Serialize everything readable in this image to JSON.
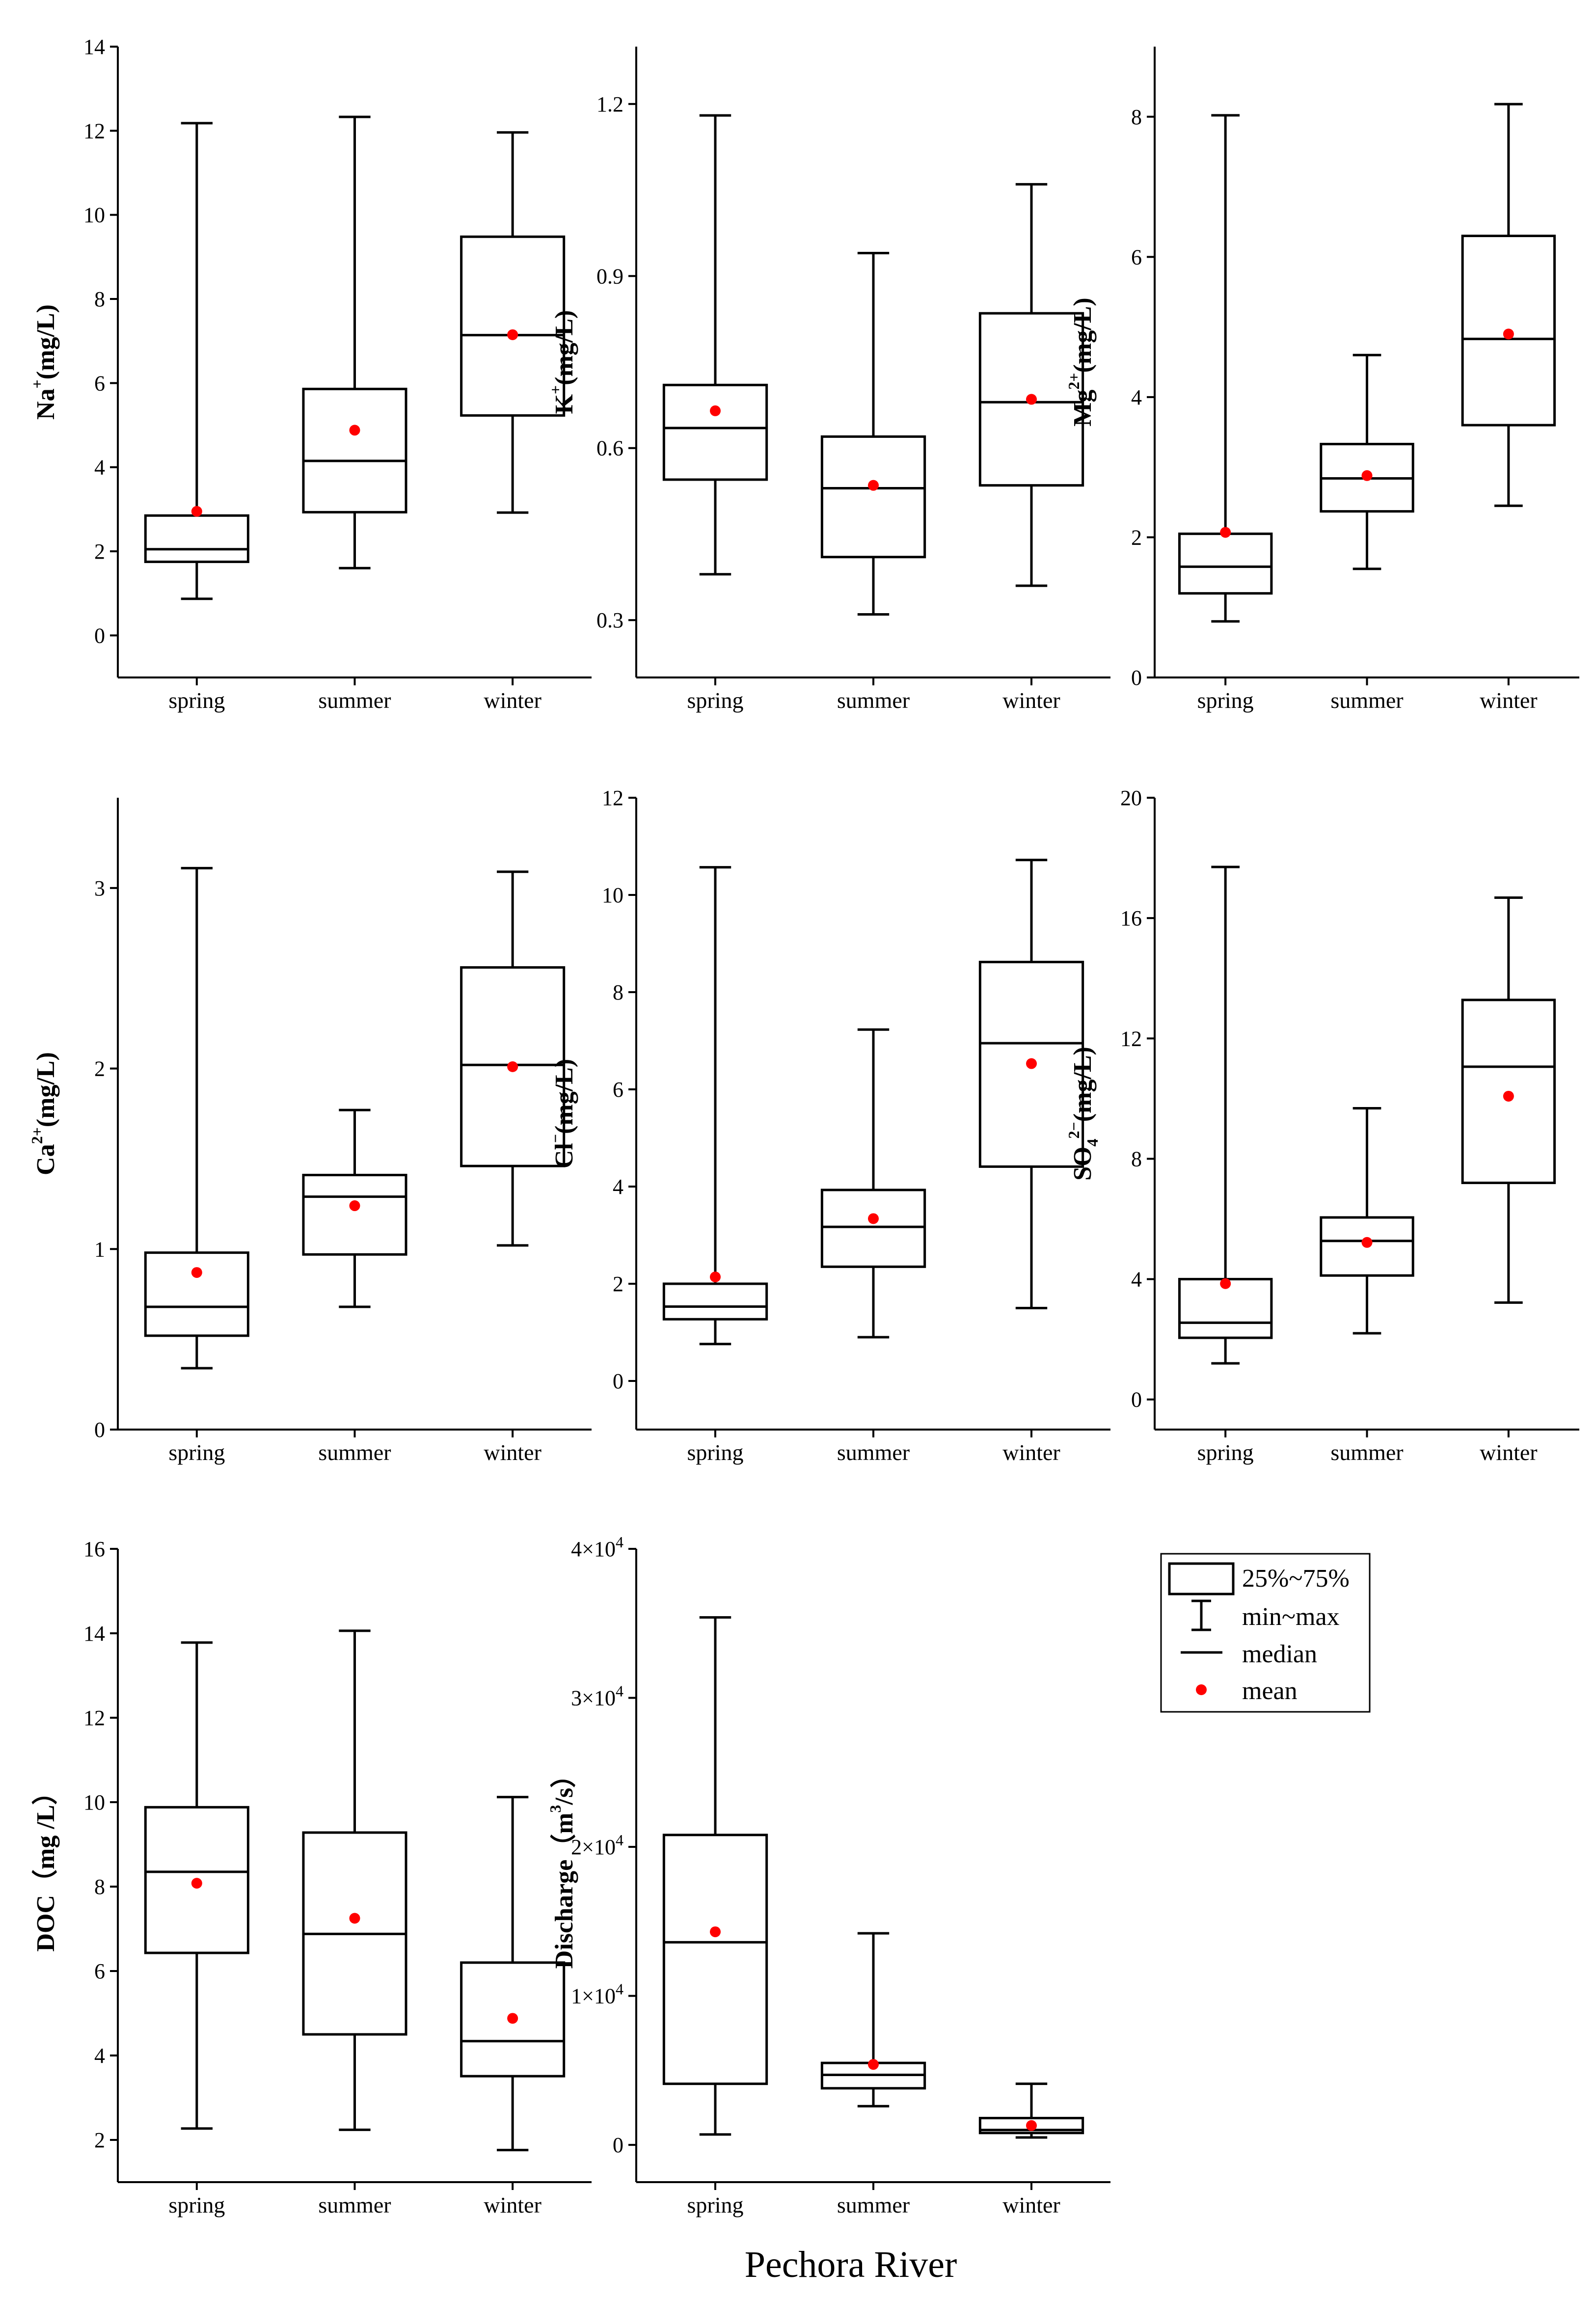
{
  "figure": {
    "footer_label": "Pechora River"
  },
  "legend": {
    "box_label": "25%~75%",
    "whisker_label": "min~max",
    "median_label": "median",
    "mean_label": "mean"
  },
  "colors": {
    "mean_marker": "#ff0000",
    "lines": "#000000",
    "background": "#ffffff"
  },
  "chart_data": [
    {
      "type": "box",
      "ylabel": {
        "base": "Na",
        "sup": "+",
        "suffix": "(mg/L)"
      },
      "ylim": [
        -1,
        14
      ],
      "yticks": [
        0,
        2,
        4,
        6,
        8,
        10,
        12,
        14
      ],
      "categories": [
        "spring",
        "summer",
        "winter"
      ],
      "boxes": [
        {
          "min": 0.87,
          "q1": 1.75,
          "median": 2.05,
          "q3": 2.85,
          "max": 12.18,
          "mean": 2.95
        },
        {
          "min": 1.6,
          "q1": 2.93,
          "median": 4.15,
          "q3": 5.86,
          "max": 12.33,
          "mean": 4.88
        },
        {
          "min": 2.92,
          "q1": 5.23,
          "median": 7.14,
          "q3": 9.48,
          "max": 11.96,
          "mean": 7.15
        }
      ]
    },
    {
      "type": "box",
      "ylabel": {
        "base": "K",
        "sup": "+",
        "suffix": "(mg/L)"
      },
      "ylim": [
        0.2,
        1.3
      ],
      "yticks": [
        0.3,
        0.6,
        0.9,
        1.2
      ],
      "tick_labels": [
        "0.3",
        "0.6",
        "0.9",
        "1.2"
      ],
      "categories": [
        "spring",
        "summer",
        "winter"
      ],
      "boxes": [
        {
          "min": 0.38,
          "q1": 0.545,
          "median": 0.635,
          "q3": 0.71,
          "max": 1.18,
          "mean": 0.665
        },
        {
          "min": 0.31,
          "q1": 0.41,
          "median": 0.53,
          "q3": 0.62,
          "max": 0.94,
          "mean": 0.535
        },
        {
          "min": 0.36,
          "q1": 0.535,
          "median": 0.68,
          "q3": 0.835,
          "max": 1.06,
          "mean": 0.685
        }
      ]
    },
    {
      "type": "box",
      "ylabel": {
        "base": "Mg",
        "sup": "2+",
        "suffix": "(mg/L)"
      },
      "ylim": [
        0,
        9
      ],
      "yticks": [
        0,
        2,
        4,
        6,
        8
      ],
      "categories": [
        "spring",
        "summer",
        "winter"
      ],
      "boxes": [
        {
          "min": 0.8,
          "q1": 1.2,
          "median": 1.58,
          "q3": 2.05,
          "max": 8.02,
          "mean": 2.07
        },
        {
          "min": 1.55,
          "q1": 2.37,
          "median": 2.84,
          "q3": 3.33,
          "max": 4.6,
          "mean": 2.88
        },
        {
          "min": 2.45,
          "q1": 3.6,
          "median": 4.83,
          "q3": 6.3,
          "max": 8.18,
          "mean": 4.9
        }
      ]
    },
    {
      "type": "box",
      "ylabel": {
        "base": "Ca",
        "sup": "2+",
        "suffix": "(mg/L)"
      },
      "ylim": [
        0,
        3.5
      ],
      "yticks": [
        0,
        1,
        2,
        3
      ],
      "categories": [
        "spring",
        "summer",
        "winter"
      ],
      "boxes": [
        {
          "min": 0.34,
          "q1": 0.52,
          "median": 0.68,
          "q3": 0.98,
          "max": 3.11,
          "mean": 0.87
        },
        {
          "min": 0.68,
          "q1": 0.97,
          "median": 1.29,
          "q3": 1.41,
          "max": 1.77,
          "mean": 1.24
        },
        {
          "min": 1.02,
          "q1": 1.46,
          "median": 2.02,
          "q3": 2.56,
          "max": 3.09,
          "mean": 2.01
        }
      ]
    },
    {
      "type": "box",
      "ylabel": {
        "base": "Cl",
        "sup": "−",
        "suffix": "(mg/L)"
      },
      "ylim": [
        -1,
        12
      ],
      "yticks": [
        0,
        2,
        4,
        6,
        8,
        10,
        12
      ],
      "categories": [
        "spring",
        "summer",
        "winter"
      ],
      "boxes": [
        {
          "min": 0.76,
          "q1": 1.27,
          "median": 1.53,
          "q3": 2.0,
          "max": 10.57,
          "mean": 2.14
        },
        {
          "min": 0.9,
          "q1": 2.35,
          "median": 3.17,
          "q3": 3.93,
          "max": 7.23,
          "mean": 3.34
        },
        {
          "min": 1.5,
          "q1": 4.41,
          "median": 6.95,
          "q3": 8.62,
          "max": 10.72,
          "mean": 6.53
        }
      ]
    },
    {
      "type": "box",
      "ylabel": {
        "base": "SO",
        "sub": "4",
        "sup": "2−",
        "suffix": "(mg/L)"
      },
      "ylim": [
        -1,
        20
      ],
      "yticks": [
        0,
        4,
        8,
        12,
        16,
        20
      ],
      "categories": [
        "spring",
        "summer",
        "winter"
      ],
      "boxes": [
        {
          "min": 1.2,
          "q1": 2.05,
          "median": 2.55,
          "q3": 4.0,
          "max": 17.7,
          "mean": 3.85
        },
        {
          "min": 2.2,
          "q1": 4.12,
          "median": 5.27,
          "q3": 6.05,
          "max": 9.68,
          "mean": 5.22
        },
        {
          "min": 3.22,
          "q1": 7.2,
          "median": 11.06,
          "q3": 13.28,
          "max": 16.68,
          "mean": 10.08
        }
      ]
    },
    {
      "type": "box",
      "ylabel": {
        "base": "DOC（mg /L）"
      },
      "ylim": [
        1,
        16
      ],
      "yticks": [
        2,
        4,
        6,
        8,
        10,
        12,
        14,
        16
      ],
      "categories": [
        "spring",
        "summer",
        "winter"
      ],
      "boxes": [
        {
          "min": 2.27,
          "q1": 6.43,
          "median": 8.35,
          "q3": 9.88,
          "max": 13.78,
          "mean": 8.08
        },
        {
          "min": 2.24,
          "q1": 4.5,
          "median": 6.88,
          "q3": 9.28,
          "max": 14.06,
          "mean": 7.25
        },
        {
          "min": 1.76,
          "q1": 3.51,
          "median": 4.34,
          "q3": 6.2,
          "max": 10.12,
          "mean": 4.88
        }
      ]
    },
    {
      "type": "box",
      "ylabel": {
        "base": "Discharge（m",
        "sup": "3",
        "suffix": "/s）"
      },
      "ylim": [
        -2500,
        40000
      ],
      "yticks": [
        0,
        10000,
        20000,
        30000,
        40000
      ],
      "tick_labels": [
        {
          "m": "0"
        },
        {
          "m": "1×10",
          "e": "4"
        },
        {
          "m": "2×10",
          "e": "4"
        },
        {
          "m": "3×10",
          "e": "4"
        },
        {
          "m": "4×10",
          "e": "4"
        }
      ],
      "categories": [
        "spring",
        "summer",
        "winter"
      ],
      "boxes": [
        {
          "min": 700,
          "q1": 4100,
          "median": 13600,
          "q3": 20800,
          "max": 35400,
          "mean": 14300
        },
        {
          "min": 2600,
          "q1": 3800,
          "median": 4700,
          "q3": 5500,
          "max": 14200,
          "mean": 5400
        },
        {
          "min": 500,
          "q1": 800,
          "median": 1000,
          "q3": 1800,
          "max": 4100,
          "mean": 1300
        }
      ]
    }
  ]
}
